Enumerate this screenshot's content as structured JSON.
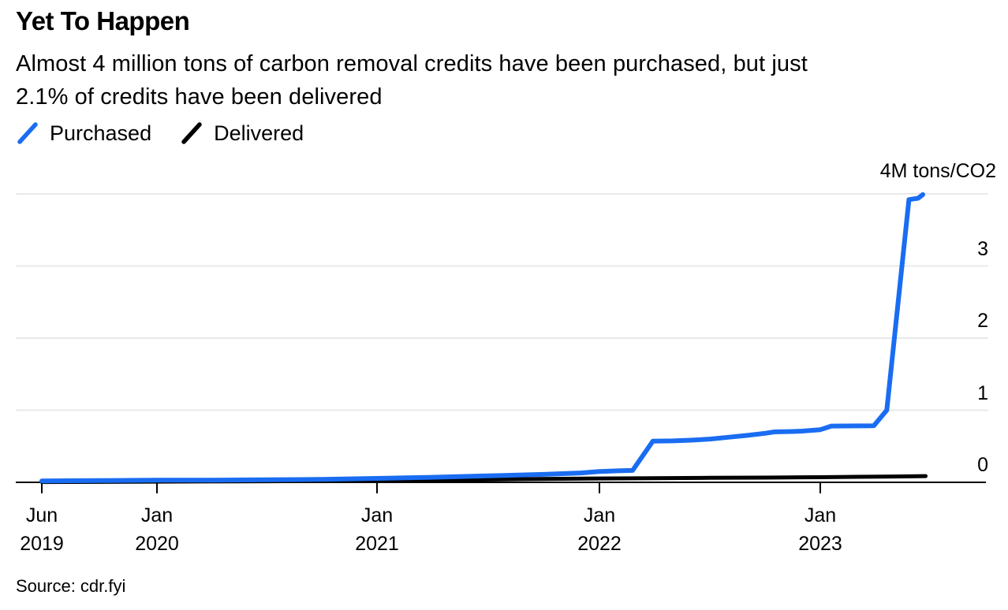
{
  "header": {
    "title": "Yet To Happen",
    "subtitle_lines": [
      "Almost 4 million tons of carbon removal credits have been purchased, but just",
      "2.1% of credits have been delivered"
    ]
  },
  "legend": {
    "items": [
      {
        "label": "Purchased",
        "color": "#1a6df2",
        "icon": "diagonal-line-swatch-icon"
      },
      {
        "label": "Delivered",
        "color": "#000000",
        "icon": "diagonal-line-swatch-icon"
      }
    ]
  },
  "chart_data": {
    "type": "line",
    "title": "Yet To Happen",
    "subtitle": "Almost 4 million tons of carbon removal credits have been purchased, but just 2.1% of credits have been delivered",
    "unit_label": "4M tons/CO2",
    "ylabel": "M tons/CO2",
    "ylim": [
      0,
      4
    ],
    "y_ticks": [
      0,
      1,
      2,
      3
    ],
    "grid": "horizontal",
    "legend_position": "top-left",
    "x_unit": "months since Jun 2019",
    "x_ticks": [
      {
        "m": 0,
        "month": "Jun",
        "year": "2019"
      },
      {
        "m": 7,
        "month": "Jan",
        "year": "2020"
      },
      {
        "m": 19,
        "month": "Jan",
        "year": "2021"
      },
      {
        "m": 31,
        "month": "Jan",
        "year": "2022"
      },
      {
        "m": 43,
        "month": "Jan",
        "year": "2023"
      }
    ],
    "series": [
      {
        "name": "Purchased",
        "color": "#1a6df2",
        "points": [
          [
            0,
            0.02
          ],
          [
            4,
            0.025
          ],
          [
            7,
            0.03
          ],
          [
            10,
            0.03
          ],
          [
            13,
            0.035
          ],
          [
            16,
            0.04
          ],
          [
            19,
            0.055
          ],
          [
            22,
            0.07
          ],
          [
            25,
            0.09
          ],
          [
            28,
            0.11
          ],
          [
            30,
            0.13
          ],
          [
            31,
            0.15
          ],
          [
            32,
            0.16
          ],
          [
            32.8,
            0.165
          ],
          [
            33.9,
            0.57
          ],
          [
            35,
            0.575
          ],
          [
            36,
            0.585
          ],
          [
            37,
            0.6
          ],
          [
            38,
            0.625
          ],
          [
            39,
            0.65
          ],
          [
            40,
            0.68
          ],
          [
            40.5,
            0.7
          ],
          [
            41.5,
            0.705
          ],
          [
            42,
            0.71
          ],
          [
            43,
            0.73
          ],
          [
            43.6,
            0.78
          ],
          [
            45.9,
            0.785
          ],
          [
            46.6,
            1.0
          ],
          [
            47.8,
            3.92
          ],
          [
            48.3,
            3.94
          ],
          [
            48.55,
            3.99
          ]
        ]
      },
      {
        "name": "Delivered",
        "color": "#000000",
        "points": [
          [
            0,
            0.004
          ],
          [
            7,
            0.01
          ],
          [
            13,
            0.015
          ],
          [
            19,
            0.022
          ],
          [
            23,
            0.034
          ],
          [
            27,
            0.045
          ],
          [
            31,
            0.054
          ],
          [
            34,
            0.058
          ],
          [
            37,
            0.062
          ],
          [
            40,
            0.066
          ],
          [
            43,
            0.071
          ],
          [
            45,
            0.076
          ],
          [
            46.5,
            0.08
          ],
          [
            48.7,
            0.086
          ]
        ]
      }
    ]
  },
  "footer": {
    "source": "Source: cdr.fyi"
  }
}
